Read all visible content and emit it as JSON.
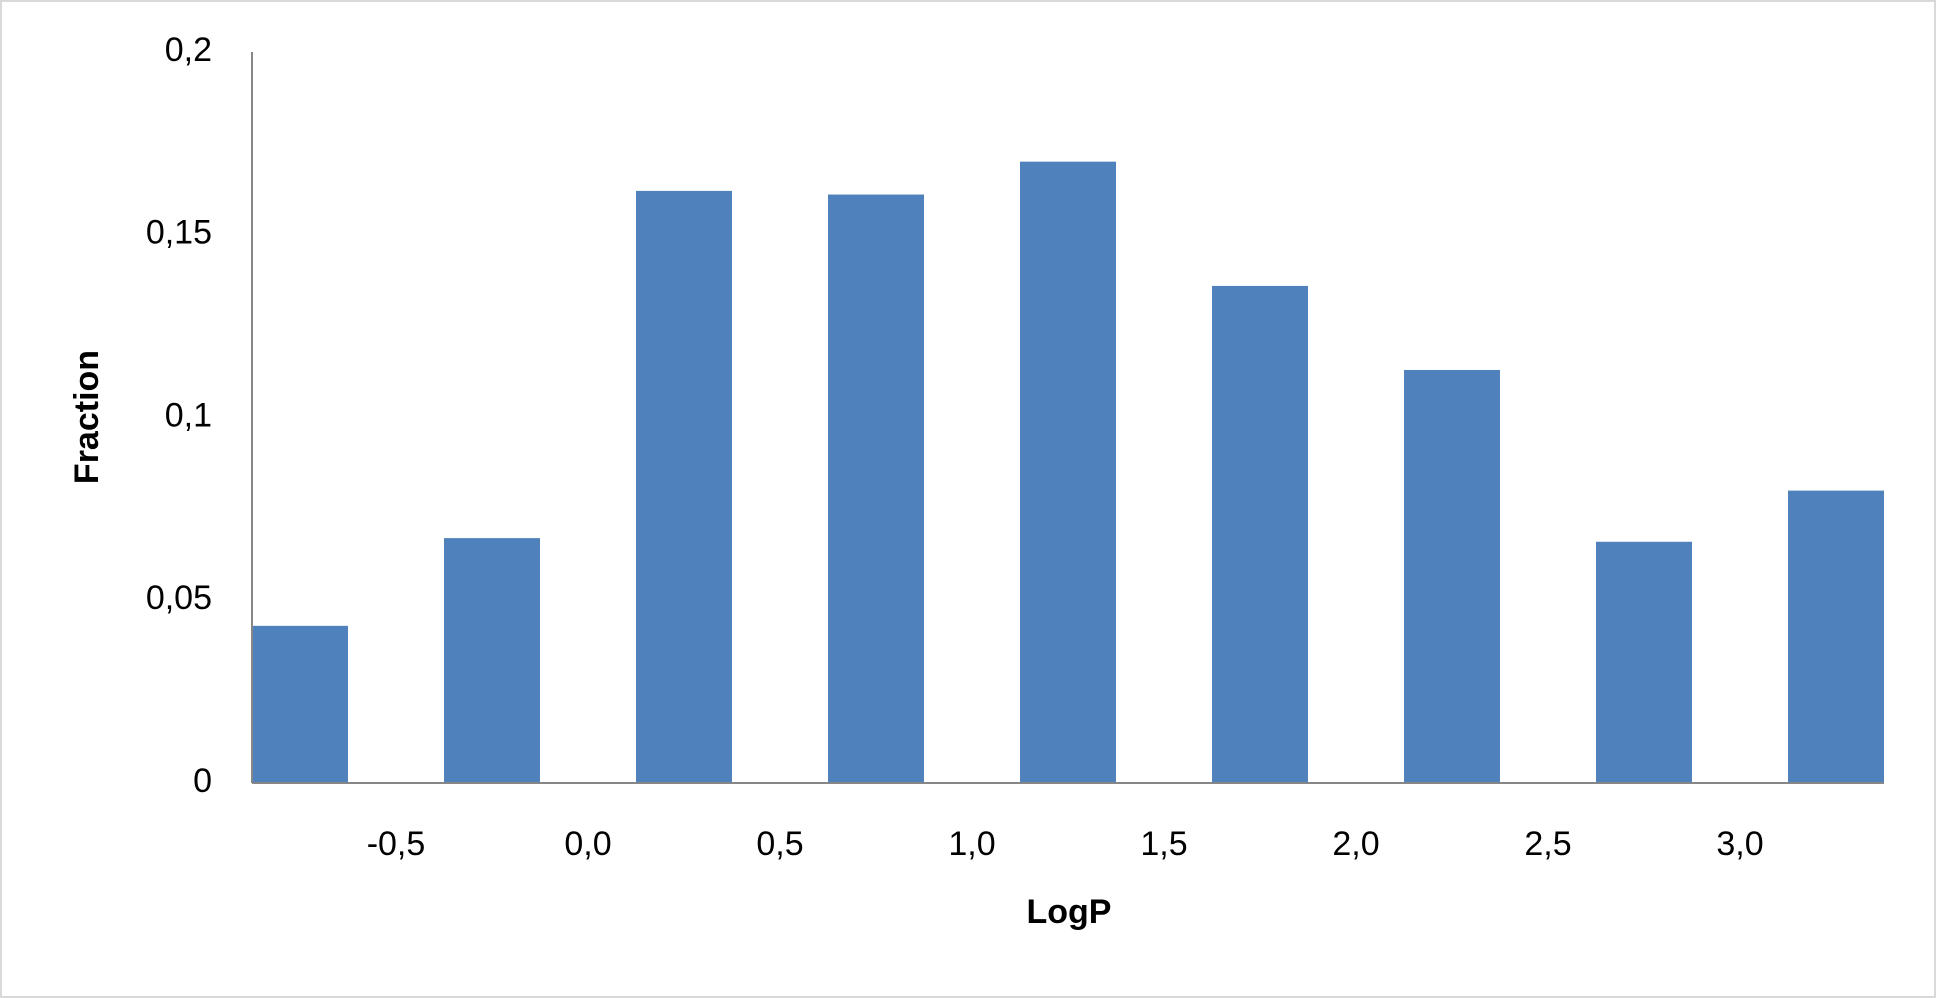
{
  "chart_data": {
    "type": "bar",
    "x_label": "LogP",
    "y_label": "Fraction",
    "x": [
      -0.75,
      -0.25,
      0.25,
      0.75,
      1.25,
      1.75,
      2.25,
      2.75,
      3.25
    ],
    "values": [
      0.043,
      0.067,
      0.162,
      0.161,
      0.17,
      0.136,
      0.113,
      0.066,
      0.08
    ],
    "color": "#4f81bd",
    "xlim": [
      -0.875,
      3.375
    ],
    "xticks": [
      {
        "value": -0.5,
        "label": "-0,5"
      },
      {
        "value": 0.0,
        "label": "0,0"
      },
      {
        "value": 0.5,
        "label": "0,5"
      },
      {
        "value": 1.0,
        "label": "1,0"
      },
      {
        "value": 1.5,
        "label": "1,5"
      },
      {
        "value": 2.0,
        "label": "2,0"
      },
      {
        "value": 2.5,
        "label": "2,5"
      },
      {
        "value": 3.0,
        "label": "3,0"
      }
    ],
    "ylim": [
      0,
      0.2
    ],
    "yticks": [
      0,
      {
        "value": 0.05,
        "label": "0,05"
      },
      {
        "value": 0.1,
        "label": "0,1"
      },
      {
        "value": 0.15,
        "label": "0,15"
      },
      {
        "value": 0.2,
        "label": "0,2"
      }
    ],
    "grid": false
  }
}
